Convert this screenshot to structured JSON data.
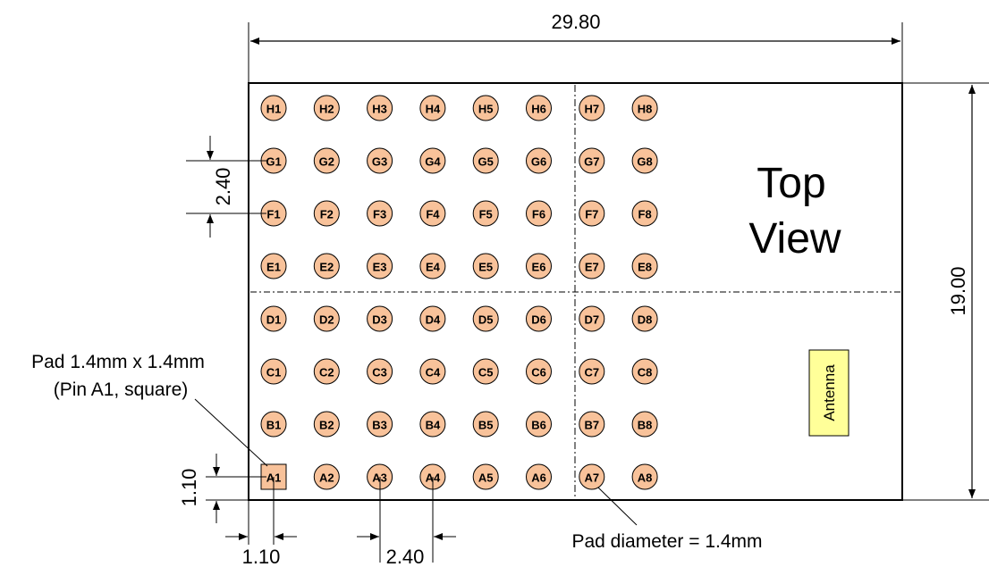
{
  "dimensions": {
    "width": "29.80",
    "height": "19.00",
    "row_pitch": "2.40",
    "col_pitch": "2.40",
    "edge_x": "1.10",
    "edge_y": "1.10"
  },
  "view_label": {
    "line1": "Top",
    "line2": "View"
  },
  "antenna_label": "Antenna",
  "notes": {
    "pin_a1_line1": "Pad 1.4mm x 1.4mm",
    "pin_a1_line2": "(Pin A1, square)",
    "pad_diameter": "Pad diameter = 1.4mm"
  },
  "colors": {
    "pad_fill": "#F8C29A",
    "antenna_fill": "#FFFF99",
    "outline": "#000000"
  },
  "pads": {
    "rows": [
      "H",
      "G",
      "F",
      "E",
      "D",
      "C",
      "B",
      "A"
    ],
    "columns": [
      "1",
      "2",
      "3",
      "4",
      "5",
      "6",
      "7",
      "8"
    ],
    "square_pad": "A1",
    "shape": "circle"
  }
}
